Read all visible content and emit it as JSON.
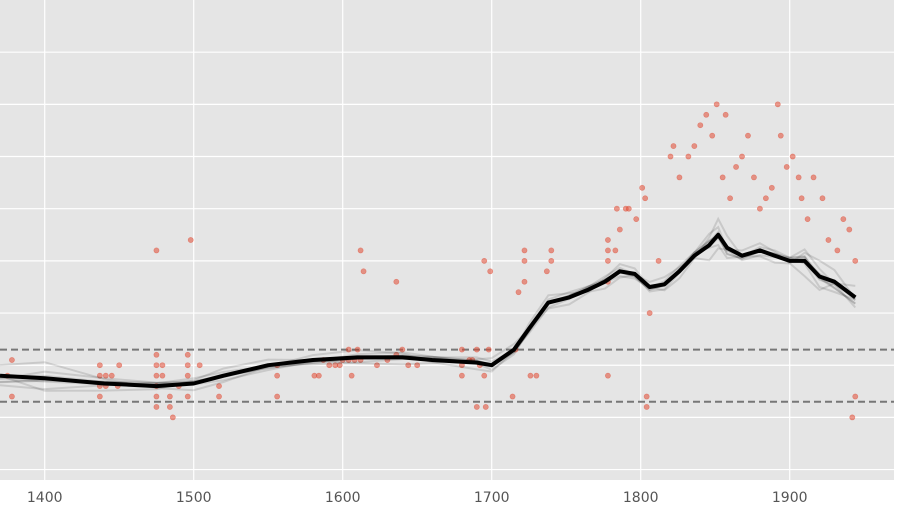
{
  "chart_data": {
    "type": "scatter",
    "title": "",
    "xlabel": "",
    "ylabel": "",
    "xlim": [
      1370,
      1970
    ],
    "ylim": [
      -2.2,
      7.0
    ],
    "x_ticks": [
      1400,
      1500,
      1600,
      1700,
      1800,
      1900
    ],
    "x_tick_labels": [
      "1400",
      "1500",
      "1600",
      "1700",
      "1800",
      "1900"
    ],
    "y_gridlines": [
      -2,
      -1,
      0,
      1,
      2,
      3,
      4,
      5,
      6
    ],
    "grid": true,
    "reference_lines": [
      0.3,
      -0.7
    ],
    "colors": {
      "panel": "#e5e5e5",
      "grid": "#ffffff",
      "points": "#e24a33",
      "trend": "#000000",
      "reference": "#777777"
    },
    "series": [
      {
        "type": "scatter",
        "points": [
          [
            1375,
            -0.2
          ],
          [
            1378,
            0.1
          ],
          [
            1378,
            -0.6
          ],
          [
            1437,
            -0.2
          ],
          [
            1437,
            -0.4
          ],
          [
            1437,
            -0.6
          ],
          [
            1437,
            0
          ],
          [
            1441,
            -0.2
          ],
          [
            1441,
            -0.4
          ],
          [
            1445,
            -0.2
          ],
          [
            1449,
            -0.4
          ],
          [
            1450,
            0
          ],
          [
            1475,
            0.2
          ],
          [
            1475,
            0
          ],
          [
            1475,
            -0.2
          ],
          [
            1475,
            -0.4
          ],
          [
            1475,
            -0.6
          ],
          [
            1475,
            -0.8
          ],
          [
            1475,
            2.2
          ],
          [
            1479,
            0
          ],
          [
            1479,
            -0.2
          ],
          [
            1484,
            -0.6
          ],
          [
            1484,
            -0.8
          ],
          [
            1486,
            -1.0
          ],
          [
            1490,
            -0.4
          ],
          [
            1496,
            0
          ],
          [
            1496,
            -0.2
          ],
          [
            1496,
            0.2
          ],
          [
            1496,
            -0.6
          ],
          [
            1498,
            2.4
          ],
          [
            1504,
            0
          ],
          [
            1517,
            -0.4
          ],
          [
            1517,
            -0.6
          ],
          [
            1556,
            -0.2
          ],
          [
            1556,
            0
          ],
          [
            1556,
            -0.6
          ],
          [
            1581,
            -0.2
          ],
          [
            1584,
            -0.2
          ],
          [
            1587,
            0.1
          ],
          [
            1591,
            0
          ],
          [
            1595,
            0
          ],
          [
            1598,
            0
          ],
          [
            1600,
            0.1
          ],
          [
            1604,
            0.1
          ],
          [
            1604,
            0.3
          ],
          [
            1606,
            -0.2
          ],
          [
            1608,
            0.1
          ],
          [
            1610,
            0.3
          ],
          [
            1612,
            0.1
          ],
          [
            1612,
            2.2
          ],
          [
            1614,
            1.8
          ],
          [
            1623,
            0
          ],
          [
            1630,
            0.1
          ],
          [
            1636,
            0.2
          ],
          [
            1636,
            1.6
          ],
          [
            1640,
            0.3
          ],
          [
            1644,
            0
          ],
          [
            1650,
            0
          ],
          [
            1680,
            0
          ],
          [
            1680,
            0.3
          ],
          [
            1680,
            -0.2
          ],
          [
            1685,
            0.1
          ],
          [
            1687,
            0.1
          ],
          [
            1690,
            0.3
          ],
          [
            1690,
            -0.8
          ],
          [
            1692,
            0
          ],
          [
            1695,
            -0.2
          ],
          [
            1695,
            2.0
          ],
          [
            1696,
            -0.8
          ],
          [
            1698,
            0.3
          ],
          [
            1699,
            1.8
          ],
          [
            1714,
            -0.6
          ],
          [
            1716,
            0.3
          ],
          [
            1718,
            1.4
          ],
          [
            1722,
            1.6
          ],
          [
            1722,
            2.0
          ],
          [
            1722,
            2.2
          ],
          [
            1726,
            -0.2
          ],
          [
            1730,
            -0.2
          ],
          [
            1737,
            1.8
          ],
          [
            1740,
            2.2
          ],
          [
            1740,
            2.0
          ],
          [
            1778,
            1.6
          ],
          [
            1778,
            2.0
          ],
          [
            1778,
            2.2
          ],
          [
            1778,
            2.4
          ],
          [
            1778,
            -0.2
          ],
          [
            1783,
            2.2
          ],
          [
            1784,
            3.0
          ],
          [
            1786,
            2.6
          ],
          [
            1790,
            3.0
          ],
          [
            1792,
            3.0
          ],
          [
            1797,
            2.8
          ],
          [
            1801,
            3.4
          ],
          [
            1803,
            3.2
          ],
          [
            1804,
            -0.6
          ],
          [
            1804,
            -0.8
          ],
          [
            1806,
            1.0
          ],
          [
            1812,
            2.0
          ],
          [
            1820,
            4.0
          ],
          [
            1822,
            4.2
          ],
          [
            1826,
            3.6
          ],
          [
            1832,
            4.0
          ],
          [
            1836,
            4.2
          ],
          [
            1840,
            4.6
          ],
          [
            1844,
            4.8
          ],
          [
            1848,
            4.4
          ],
          [
            1851,
            5.0
          ],
          [
            1855,
            3.6
          ],
          [
            1857,
            4.8
          ],
          [
            1860,
            3.2
          ],
          [
            1864,
            3.8
          ],
          [
            1868,
            4.0
          ],
          [
            1872,
            4.4
          ],
          [
            1876,
            3.6
          ],
          [
            1880,
            3.0
          ],
          [
            1884,
            3.2
          ],
          [
            1888,
            3.4
          ],
          [
            1892,
            5.0
          ],
          [
            1894,
            4.4
          ],
          [
            1898,
            3.8
          ],
          [
            1902,
            4.0
          ],
          [
            1906,
            3.6
          ],
          [
            1908,
            3.2
          ],
          [
            1912,
            2.8
          ],
          [
            1916,
            3.6
          ],
          [
            1922,
            3.2
          ],
          [
            1926,
            2.4
          ],
          [
            1932,
            2.2
          ],
          [
            1936,
            2.8
          ],
          [
            1940,
            2.6
          ],
          [
            1942,
            -1.0
          ],
          [
            1944,
            -0.6
          ],
          [
            1944,
            2.0
          ]
        ]
      },
      {
        "type": "line",
        "points": [
          [
            1370,
            -0.2
          ],
          [
            1400,
            -0.25
          ],
          [
            1440,
            -0.35
          ],
          [
            1475,
            -0.4
          ],
          [
            1500,
            -0.35
          ],
          [
            1520,
            -0.2
          ],
          [
            1550,
            0
          ],
          [
            1580,
            0.1
          ],
          [
            1610,
            0.15
          ],
          [
            1640,
            0.15
          ],
          [
            1660,
            0.1
          ],
          [
            1690,
            0.05
          ],
          [
            1700,
            0.0
          ],
          [
            1715,
            0.3
          ],
          [
            1725,
            0.7
          ],
          [
            1738,
            1.2
          ],
          [
            1752,
            1.3
          ],
          [
            1765,
            1.45
          ],
          [
            1776,
            1.6
          ],
          [
            1786,
            1.8
          ],
          [
            1796,
            1.75
          ],
          [
            1806,
            1.5
          ],
          [
            1816,
            1.55
          ],
          [
            1826,
            1.8
          ],
          [
            1836,
            2.1
          ],
          [
            1846,
            2.3
          ],
          [
            1852,
            2.5
          ],
          [
            1858,
            2.25
          ],
          [
            1868,
            2.1
          ],
          [
            1880,
            2.2
          ],
          [
            1890,
            2.1
          ],
          [
            1900,
            2.0
          ],
          [
            1910,
            2.0
          ],
          [
            1920,
            1.7
          ],
          [
            1930,
            1.6
          ],
          [
            1944,
            1.3
          ]
        ]
      }
    ]
  }
}
